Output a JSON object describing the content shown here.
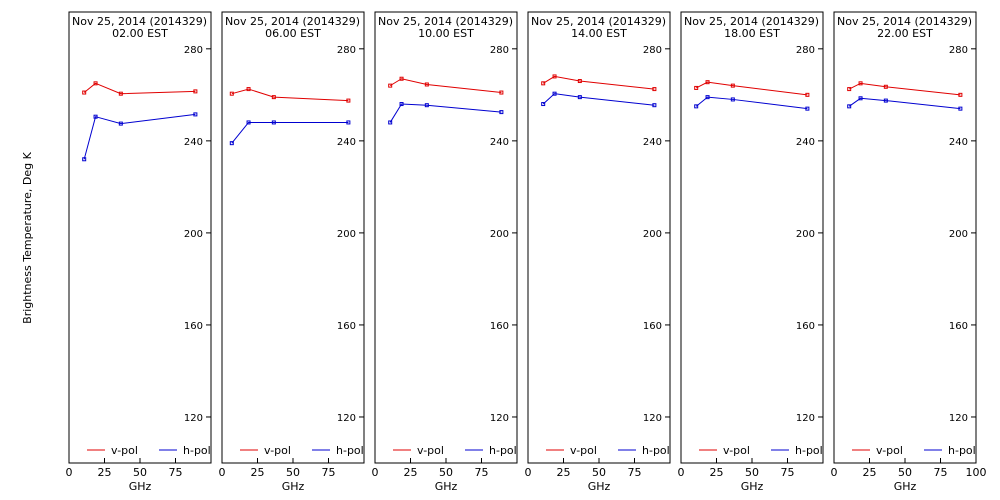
{
  "chart_data": {
    "type": "line",
    "ylabel": "Brightness Temperature, Deg K",
    "xlabel": "GHz",
    "xlim": [
      0,
      100
    ],
    "ylim": [
      100,
      296
    ],
    "xticks": [
      "0",
      "25",
      "50",
      "75",
      "100"
    ],
    "yticks": [
      "120",
      "160",
      "200",
      "240",
      "280"
    ],
    "legend": {
      "placement": "bottom",
      "entries": [
        "v-pol",
        "h-pol"
      ]
    },
    "colors": {
      "v-pol": "#e00000",
      "h-pol": "#0000d0"
    },
    "panels": [
      {
        "title": "Nov 25, 2014 (2014329)",
        "time": "02.00 EST",
        "x": [
          10.7,
          18.7,
          36.5,
          89.0
        ],
        "series": [
          {
            "name": "v-pol",
            "values": [
              261,
              265,
              260.5,
              261.5
            ]
          },
          {
            "name": "h-pol",
            "values": [
              232,
              250.5,
              247.5,
              251.5
            ]
          }
        ]
      },
      {
        "title": "Nov 25, 2014 (2014329)",
        "time": "06.00 EST",
        "x": [
          6.9,
          18.7,
          36.5,
          89.0
        ],
        "series": [
          {
            "name": "v-pol",
            "values": [
              260.5,
              262.5,
              259,
              257.5
            ]
          },
          {
            "name": "h-pol",
            "values": [
              239,
              248,
              248,
              248
            ]
          }
        ]
      },
      {
        "title": "Nov 25, 2014 (2014329)",
        "time": "10.00 EST",
        "x": [
          10.7,
          18.7,
          36.5,
          89.0
        ],
        "series": [
          {
            "name": "v-pol",
            "values": [
              264,
              267,
              264.5,
              261
            ]
          },
          {
            "name": "h-pol",
            "values": [
              248,
              256,
              255.5,
              252.5
            ]
          }
        ]
      },
      {
        "title": "Nov 25, 2014 (2014329)",
        "time": "14.00 EST",
        "x": [
          10.7,
          18.7,
          36.5,
          89.0
        ],
        "series": [
          {
            "name": "v-pol",
            "values": [
              265,
              268,
              266,
              262.5
            ]
          },
          {
            "name": "h-pol",
            "values": [
              256,
              260.5,
              259,
              255.5
            ]
          }
        ]
      },
      {
        "title": "Nov 25, 2014 (2014329)",
        "time": "18.00 EST",
        "x": [
          10.7,
          18.7,
          36.5,
          89.0
        ],
        "series": [
          {
            "name": "v-pol",
            "values": [
              263,
              265.5,
              264,
              260
            ]
          },
          {
            "name": "h-pol",
            "values": [
              255,
              259,
              258,
              254
            ]
          }
        ]
      },
      {
        "title": "Nov 25, 2014 (2014329)",
        "time": "22.00 EST",
        "x": [
          10.7,
          18.7,
          36.5,
          89.0
        ],
        "series": [
          {
            "name": "v-pol",
            "values": [
              262.5,
              265,
              263.5,
              260
            ]
          },
          {
            "name": "h-pol",
            "values": [
              255,
              258.5,
              257.5,
              254
            ]
          }
        ]
      }
    ]
  }
}
